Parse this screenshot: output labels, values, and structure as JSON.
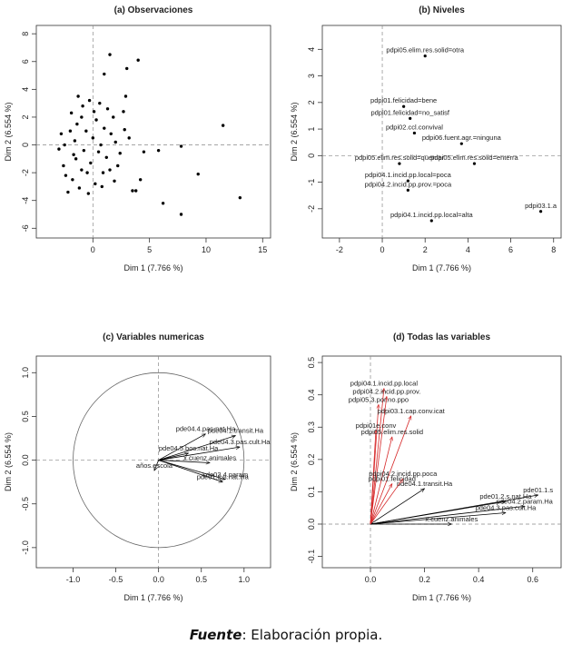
{
  "chart_data": [
    {
      "type": "scatter",
      "title": "(a) Observaciones",
      "xlabel": "Dim 1 (7.766 %)",
      "ylabel": "Dim 2 (6.554 %)",
      "xlim": [
        -5,
        15.7
      ],
      "ylim": [
        -6.7,
        8.6
      ],
      "xticks": [
        0,
        5,
        10,
        15
      ],
      "yticks": [
        -6,
        -4,
        -2,
        0,
        2,
        4,
        6,
        8
      ],
      "zero_lines": true,
      "color": "#000000",
      "x": [
        -2.5,
        -2,
        -1.5,
        -1,
        -0.5,
        0,
        0.5,
        1,
        -1.8,
        -2.2,
        -1.2,
        0.2,
        0.8,
        1.5,
        2,
        -0.3,
        -1.3,
        0.6,
        1.8,
        -2.8,
        -2.6,
        -1.6,
        -0.8,
        0.3,
        1.2,
        2.4,
        -0.6,
        -1.9,
        0.9,
        -0.2,
        1.6,
        -2.4,
        -1,
        0.1,
        2.8,
        -1.4,
        -0.4,
        1.3,
        -3,
        0.7,
        -1.7,
        2.2,
        -0.9,
        1.9,
        3.2,
        1.5,
        3,
        4,
        11.5,
        13,
        7.8,
        6.2,
        9.3,
        7.8,
        5.8,
        4.2,
        3.5,
        3.8,
        2.7,
        2.9,
        1,
        4.5
      ],
      "y": [
        0,
        1,
        -1,
        2,
        -2,
        0.5,
        -0.5,
        1.2,
        -2.5,
        -3.4,
        -3.1,
        -2.8,
        -3,
        -1.8,
        0.2,
        3.2,
        3.5,
        3,
        2,
        0.8,
        -1.5,
        0.3,
        -0.4,
        1.8,
        -0.9,
        -0.6,
        1,
        2.3,
        -2,
        -1.3,
        0.8,
        -2.2,
        -1.8,
        2.4,
        1.1,
        1.5,
        -3.5,
        2.6,
        -0.3,
        0,
        -0.7,
        -1.5,
        2.8,
        -2.6,
        0.5,
        6.5,
        5.5,
        6.1,
        1.4,
        -3.8,
        -5,
        -4.2,
        -2.1,
        -0.1,
        -0.4,
        -2.5,
        -3.3,
        -3.3,
        2.4,
        3.5,
        5.1,
        -0.5
      ]
    },
    {
      "type": "labels",
      "title": "(b) Niveles",
      "xlabel": "Dim 1 (7.766 %)",
      "ylabel": "Dim 2 (6.554 %)",
      "xlim": [
        -2.8,
        8.35
      ],
      "ylim": [
        -3.1,
        4.9
      ],
      "xticks": [
        -2,
        0,
        2,
        4,
        6,
        8
      ],
      "yticks": [
        -2,
        -1,
        0,
        1,
        2,
        3,
        4
      ],
      "zero_lines": true,
      "color": "#000000",
      "x": [
        2.0,
        1.0,
        1.3,
        1.5,
        3.7,
        0.8,
        4.3,
        1.2,
        1.2,
        2.3,
        7.4
      ],
      "y": [
        3.75,
        1.85,
        1.4,
        0.85,
        0.45,
        -0.3,
        -0.3,
        -0.95,
        -1.3,
        -2.45,
        -2.1
      ],
      "labels": [
        "pdpi05.elim.res.solid=otra",
        "pdpi01.felicidad=bene",
        "pdpi01.felicidad=no_satisf",
        "pdpi02.ccl.convival",
        "pdpi06.fuent.agr.=ninguna",
        "pdpi05.elim.res.solid=quemar",
        "pdpi05.elim.res.solid=enterra",
        "pdpi04.1.incid.pp.local=poca",
        "pdpi04.2.incid.pp.prov.=poca",
        "pdpi04.1.incid.pp.local=alta",
        "pdpi03.1.a"
      ]
    },
    {
      "type": "arrows",
      "title": "(c) Variables numericas",
      "xlabel": "Dim 1 (7.766 %)",
      "ylabel": "Dim 2 (6.554 %)",
      "xlim": [
        -1.43,
        1.31
      ],
      "ylim": [
        -1.23,
        1.19
      ],
      "xticks": [
        {
          "value": -1,
          "label": "-1.0"
        },
        -0.5,
        {
          "value": 0,
          "label": "0.0"
        },
        0.5,
        {
          "value": 1,
          "label": "1.0"
        }
      ],
      "yticks": [
        {
          "value": -1,
          "label": "-1.0"
        },
        -0.5,
        {
          "value": 0,
          "label": "0.0"
        },
        0.5,
        {
          "value": 1,
          "label": "1.0"
        }
      ],
      "zero_lines": true,
      "unit_circle": true,
      "series": [
        {
          "color": "#000000",
          "x": [
            0.55,
            0.95,
            0.35,
            0.75,
            0.78,
            -0.05,
            0.6,
            0.9
          ],
          "y": [
            0.3,
            0.15,
            0.08,
            -0.25,
            -0.22,
            -0.12,
            -0.03,
            0.28
          ],
          "labels": [
            "pde04.4.pas.nat.Ha",
            "pde04.3.pas.cult.Ha",
            "pde04.5.bos.nat.Ha",
            "pde01.2.s.nat.Ha",
            "sde02.4.param",
            "años.escola",
            "x.cuenz.animales",
            "pde04.1.transit.Ha"
          ]
        }
      ]
    },
    {
      "type": "arrows",
      "title": "(d) Todas las variables",
      "xlabel": "Dim 1 (7.766 %)",
      "ylabel": "Dim 2 (6.554 %)",
      "xlim": [
        -0.178,
        0.705
      ],
      "ylim": [
        -0.135,
        0.52
      ],
      "xticks": [
        {
          "value": 0,
          "label": "0.0"
        },
        0.2,
        0.4,
        0.6
      ],
      "yticks": [
        -0.1,
        {
          "value": 0,
          "label": "0.0"
        },
        0.1,
        0.2,
        0.3,
        0.4,
        0.5
      ],
      "zero_lines": true,
      "series": [
        {
          "color": "#000000",
          "x": [
            0.2,
            0.62,
            0.5,
            0.57,
            0.5,
            0.3
          ],
          "y": [
            0.11,
            0.09,
            0.07,
            0.055,
            0.035,
            0.0
          ],
          "labels": [
            "pde04.1.transit.Ha",
            "pde01.1.s",
            "pde01.2.s.nat.Ha",
            "pde04.2.param.Ha",
            "pde04.3.pas.cult.Ha",
            "x.cuenz.animales"
          ]
        },
        {
          "color": "#d62728",
          "x": [
            0.05,
            0.06,
            0.03,
            0.15,
            0.02,
            0.08,
            0.12,
            0.08
          ],
          "y": [
            0.42,
            0.395,
            0.37,
            0.335,
            0.29,
            0.27,
            0.14,
            0.125
          ],
          "labels": [
            "pdpi04.1.incid.pp.local",
            "pdpi04.2.incid.pp.prov.",
            "pdpi05.3.por.no.ppo",
            "pdpi03.1.cap.conv.icat",
            "pdpi01e.conv",
            "pdpi05.elim.res.solid",
            "pdpi04.2.incid.pp.poca",
            "pdpi01.felicidad"
          ]
        }
      ]
    }
  ],
  "caption": {
    "label": "Fuente",
    "text": ": Elaboración propia."
  }
}
